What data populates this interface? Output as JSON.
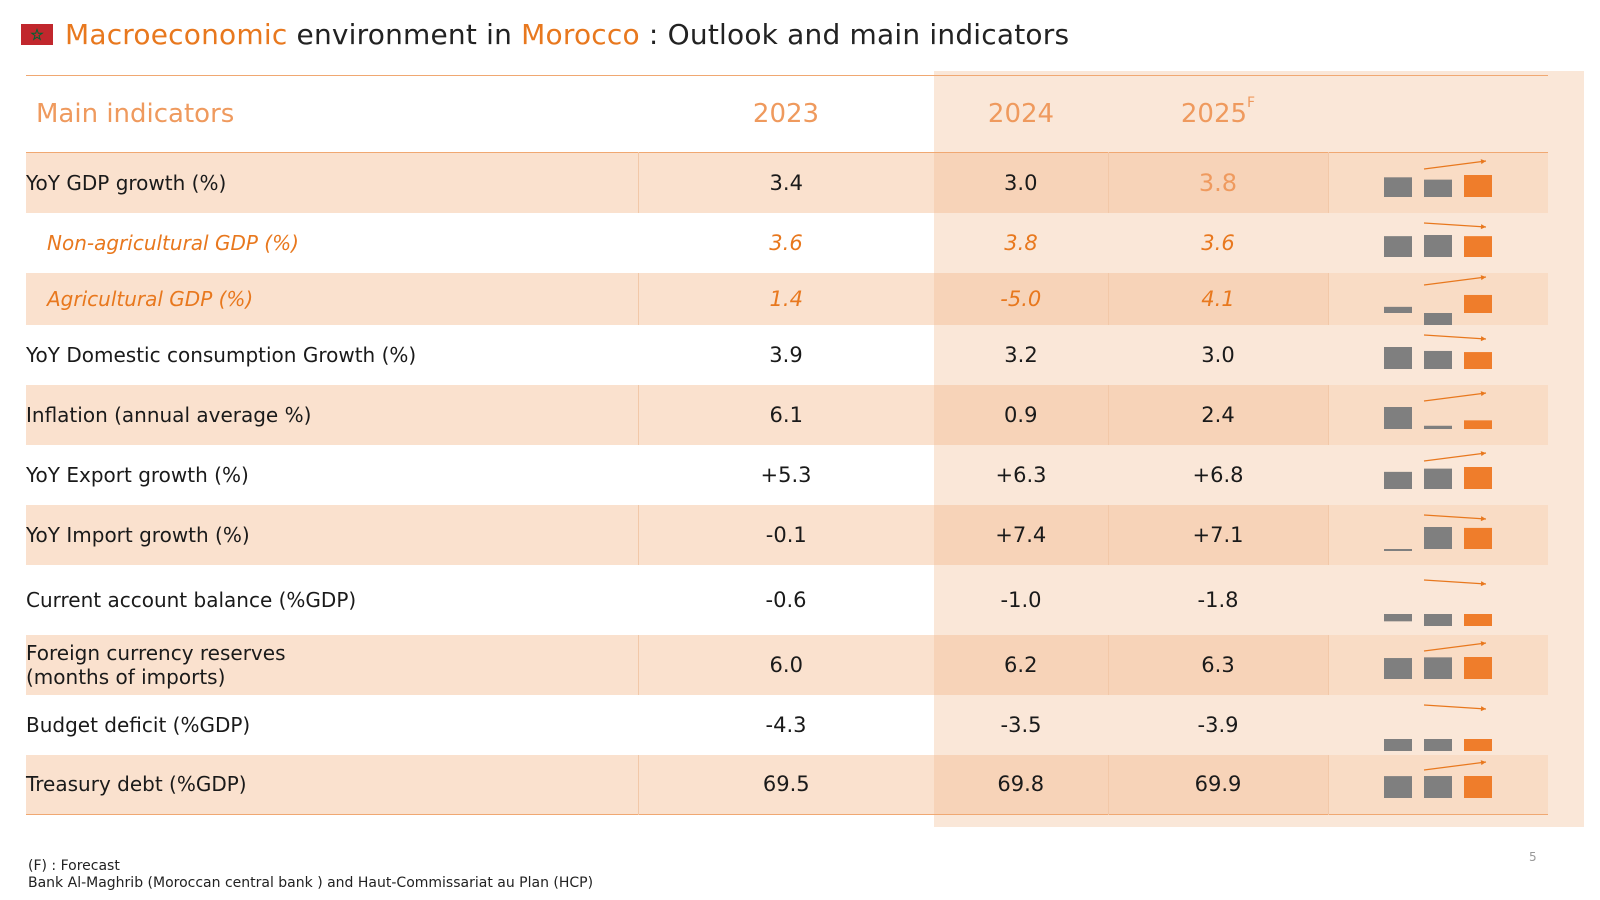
{
  "title": {
    "part1": "Macroeconomic",
    "part2": " environment in ",
    "part3": "Morocco",
    "part4": " : Outlook and main indicators",
    "flag_red": "#c1272d",
    "flag_green": "#006233"
  },
  "header": {
    "label": "Main indicators",
    "y2023": "2023",
    "y2024": "2024",
    "y2025": "2025",
    "y2025_sup": "F"
  },
  "rows": [
    {
      "label": "YoY GDP growth (%)",
      "v2023": "3.4",
      "v2024": "3.0",
      "v2025": "3.8",
      "trend": [
        3.4,
        3.0,
        3.8
      ]
    },
    {
      "label": "Non-agricultural GDP (%)",
      "v2023": "3.6",
      "v2024": "3.8",
      "v2025": "3.6",
      "trend": [
        3.6,
        3.8,
        3.6
      ]
    },
    {
      "label": "Agricultural GDP (%)",
      "v2023": "1.4",
      "v2024": "-5.0",
      "v2025": "4.1",
      "trend": [
        1.4,
        -5.0,
        4.1
      ]
    },
    {
      "label": "YoY Domestic consumption Growth (%)",
      "v2023": "3.9",
      "v2024": "3.2",
      "v2025": "3.0",
      "trend": [
        3.9,
        3.2,
        3.0
      ]
    },
    {
      "label": "Inflation (annual average %)",
      "v2023": "6.1",
      "v2024": "0.9",
      "v2025": "2.4",
      "trend": [
        6.1,
        0.9,
        2.4
      ]
    },
    {
      "label": "YoY Export growth (%)",
      "v2023": "+5.3",
      "v2024": "+6.3",
      "v2025": "+6.8",
      "trend": [
        5.3,
        6.3,
        6.8
      ]
    },
    {
      "label": "YoY Import growth (%)",
      "v2023": "-0.1",
      "v2024": "+7.4",
      "v2025": "+7.1",
      "trend": [
        -0.1,
        7.4,
        7.1
      ]
    },
    {
      "label": "Current account balance (%GDP)",
      "v2023": "-0.6",
      "v2024": "-1.0",
      "v2025": "-1.8",
      "trend": [
        -0.6,
        -1.0,
        -1.8
      ]
    },
    {
      "label_line1": "Foreign currency reserves",
      "label_line2": "(months of imports)",
      "v2023": "6.0",
      "v2024": "6.2",
      "v2025": "6.3",
      "trend": [
        6.0,
        6.2,
        6.3
      ]
    },
    {
      "label": "Budget deficit (%GDP)",
      "v2023": "-4.3",
      "v2024": "-3.5",
      "v2025": "-3.9",
      "trend": [
        -4.3,
        -3.5,
        -3.9
      ]
    },
    {
      "label": "Treasury debt (%GDP)",
      "v2023": "69.5",
      "v2024": "69.8",
      "v2025": "69.9",
      "trend": [
        69.5,
        69.8,
        69.9
      ]
    }
  ],
  "colors": {
    "accent": "#e8781e",
    "bar_past": "#7f7f7f",
    "bar_forecast": "#ef7d2b"
  },
  "footer": {
    "note": "(F) : Forecast",
    "source": "Bank Al-Maghrib  (Moroccan central bank ) and Haut-Commissariat au Plan (HCP)"
  },
  "page_number": "5"
}
